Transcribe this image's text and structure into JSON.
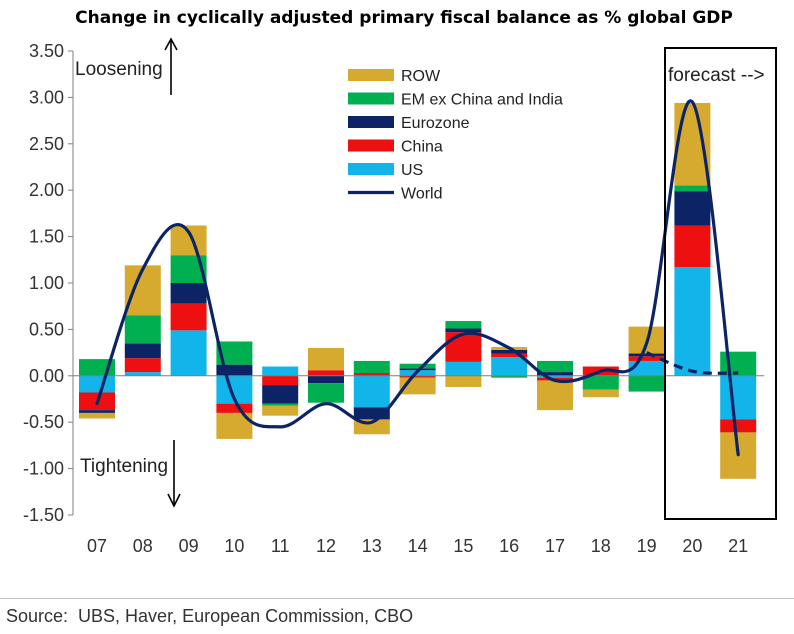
{
  "title": "Change in cyclically adjusted primary fiscal balance as % global GDP",
  "source": "Source:  UBS, Haver, European Commission, CBO",
  "annotations": {
    "loosening": "Loosening",
    "tightening": "Tightening",
    "forecast": "forecast -->"
  },
  "colors": {
    "ROW": "#d6aa2e",
    "EM ex China and India": "#00b050",
    "Eurozone": "#0c2466",
    "China": "#ee1010",
    "US": "#12b5ea",
    "World": "#0c2466",
    "axis": "#7f7f7f",
    "box": "#000000"
  },
  "chart_data": {
    "type": "bar",
    "stacked": true,
    "title": "Change in cyclically adjusted primary fiscal balance as % global GDP",
    "categories": [
      "07",
      "08",
      "09",
      "10",
      "11",
      "12",
      "13",
      "14",
      "15",
      "16",
      "17",
      "18",
      "19",
      "20",
      "21"
    ],
    "ylim": [
      -1.5,
      3.5
    ],
    "yticks": [
      "3.50",
      "3.00",
      "2.50",
      "2.00",
      "1.50",
      "1.00",
      "0.50",
      "0.00",
      "-0.50",
      "-1.00",
      "-1.50"
    ],
    "ytick_values": [
      3.5,
      3.0,
      2.5,
      2.0,
      1.5,
      1.0,
      0.5,
      0.0,
      -0.5,
      -1.0,
      -1.5
    ],
    "grid": false,
    "legend_position": "top-center",
    "series": [
      {
        "name": "US",
        "values": [
          -0.18,
          0.04,
          0.49,
          -0.3,
          0.1,
          0.0,
          -0.34,
          0.06,
          0.15,
          0.2,
          -0.02,
          0.0,
          0.16,
          1.17,
          -0.47
        ]
      },
      {
        "name": "China",
        "values": [
          -0.19,
          0.15,
          0.29,
          -0.1,
          -0.1,
          0.06,
          0.03,
          -0.02,
          0.32,
          0.04,
          -0.03,
          0.1,
          0.05,
          0.45,
          -0.14
        ]
      },
      {
        "name": "Eurozone",
        "values": [
          -0.03,
          0.16,
          0.22,
          0.12,
          -0.2,
          -0.08,
          -0.13,
          0.02,
          0.04,
          0.04,
          0.04,
          0.0,
          0.03,
          0.37,
          0.0
        ]
      },
      {
        "name": "EM ex China and India",
        "values": [
          0.18,
          0.3,
          0.3,
          0.25,
          -0.02,
          -0.21,
          0.13,
          0.05,
          0.08,
          -0.02,
          0.12,
          -0.15,
          -0.17,
          0.06,
          0.26
        ]
      },
      {
        "name": "ROW",
        "values": [
          -0.06,
          0.54,
          0.32,
          -0.28,
          -0.11,
          0.24,
          -0.16,
          -0.18,
          -0.12,
          0.03,
          -0.32,
          -0.08,
          0.29,
          0.89,
          -0.5
        ]
      }
    ],
    "world": {
      "name": "World",
      "x": [
        "07",
        "08",
        "09",
        "10",
        "11",
        "12",
        "13",
        "14",
        "15",
        "16",
        "17",
        "18",
        "19",
        "20",
        "21"
      ],
      "values": [
        -0.3,
        1.15,
        1.55,
        -0.25,
        -0.55,
        -0.3,
        -0.5,
        0.05,
        0.45,
        0.3,
        -0.05,
        0.05,
        0.35,
        2.95,
        -0.85
      ]
    },
    "world_dashed": {
      "x": [
        "19",
        "20",
        "21"
      ],
      "values": [
        0.25,
        0.05,
        0.03
      ]
    }
  }
}
